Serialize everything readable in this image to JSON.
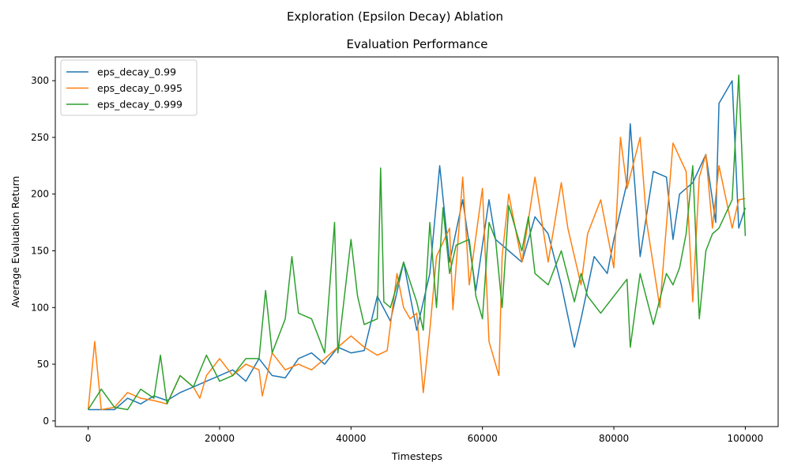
{
  "figure_title": "Exploration (Epsilon Decay) Ablation",
  "chart_data": {
    "type": "line",
    "title": "Evaluation Performance",
    "xlabel": "Timesteps",
    "ylabel": "Average Evaluation Return",
    "xlim": [
      -5000,
      105000
    ],
    "ylim": [
      -5,
      321
    ],
    "xticks": [
      0,
      20000,
      40000,
      60000,
      80000,
      100000
    ],
    "yticks": [
      0,
      50,
      100,
      150,
      200,
      250,
      300
    ],
    "grid": false,
    "legend_position": "top-left",
    "series": [
      {
        "name": "eps_decay_0.99",
        "color": "#1f77b4",
        "x": [
          0,
          2000,
          4000,
          6000,
          8000,
          10000,
          12000,
          14000,
          16000,
          18000,
          20000,
          22000,
          24000,
          26000,
          28000,
          30000,
          32000,
          34000,
          36000,
          38000,
          40000,
          42000,
          44000,
          46000,
          48000,
          50000,
          52000,
          53500,
          55000,
          57000,
          59000,
          61000,
          62000,
          64000,
          66000,
          68000,
          70000,
          72000,
          74000,
          75000,
          77000,
          79000,
          80000,
          82000,
          82500,
          84000,
          86000,
          88000,
          89000,
          90000,
          92000,
          94000,
          95500,
          96000,
          98000,
          99000,
          100000
        ],
        "y": [
          10,
          10,
          10,
          20,
          15,
          22,
          18,
          25,
          30,
          35,
          40,
          45,
          35,
          55,
          40,
          38,
          55,
          60,
          50,
          65,
          60,
          62,
          110,
          88,
          140,
          80,
          130,
          225,
          140,
          195,
          115,
          195,
          160,
          150,
          140,
          180,
          165,
          120,
          65,
          90,
          145,
          130,
          160,
          210,
          262,
          145,
          220,
          215,
          160,
          200,
          210,
          235,
          175,
          280,
          300,
          170,
          188
        ]
      },
      {
        "name": "eps_decay_0.995",
        "color": "#ff7f0e",
        "x": [
          0,
          1000,
          2000,
          4000,
          6000,
          8000,
          10000,
          12000,
          14000,
          16000,
          17000,
          18000,
          20000,
          22000,
          24000,
          26000,
          26500,
          28000,
          30000,
          32000,
          34000,
          36000,
          38000,
          40000,
          42000,
          44000,
          45500,
          47000,
          48000,
          49000,
          50000,
          51000,
          52000,
          53000,
          55000,
          55500,
          57000,
          58000,
          60000,
          61000,
          62500,
          63000,
          64000,
          66000,
          68000,
          70000,
          72000,
          73000,
          75000,
          76000,
          78000,
          80000,
          81000,
          82000,
          84000,
          85000,
          87000,
          89000,
          91000,
          92000,
          93000,
          94000,
          95000,
          96000,
          98000,
          99000,
          100000
        ],
        "y": [
          10,
          70,
          10,
          12,
          25,
          20,
          18,
          15,
          40,
          30,
          20,
          40,
          55,
          40,
          50,
          45,
          22,
          60,
          45,
          50,
          45,
          55,
          65,
          75,
          65,
          58,
          62,
          130,
          100,
          90,
          95,
          25,
          80,
          145,
          170,
          98,
          215,
          120,
          205,
          70,
          40,
          145,
          200,
          140,
          215,
          140,
          210,
          170,
          120,
          165,
          195,
          135,
          250,
          205,
          250,
          175,
          100,
          245,
          220,
          105,
          215,
          235,
          170,
          225,
          170,
          195,
          196
        ]
      },
      {
        "name": "eps_decay_0.999",
        "color": "#2ca02c",
        "x": [
          0,
          2000,
          4000,
          6000,
          8000,
          10000,
          11000,
          12000,
          14000,
          16000,
          18000,
          20000,
          22000,
          24000,
          26000,
          27000,
          28000,
          30000,
          31000,
          32000,
          34000,
          36000,
          37500,
          38000,
          40000,
          41000,
          42000,
          44000,
          44500,
          45000,
          46000,
          48000,
          50000,
          51000,
          52000,
          53000,
          54000,
          55000,
          56000,
          58000,
          59000,
          60000,
          61000,
          62000,
          63000,
          64000,
          66000,
          67000,
          68000,
          70000,
          72000,
          74000,
          75000,
          76000,
          78000,
          80000,
          82000,
          82500,
          84000,
          86000,
          88000,
          89000,
          90000,
          91000,
          92000,
          93000,
          94000,
          95000,
          96000,
          98000,
          99000,
          100000
        ],
        "y": [
          10,
          28,
          12,
          10,
          28,
          20,
          58,
          15,
          40,
          30,
          58,
          35,
          40,
          55,
          55,
          115,
          60,
          90,
          145,
          95,
          90,
          60,
          175,
          60,
          160,
          110,
          85,
          90,
          223,
          105,
          100,
          140,
          105,
          80,
          175,
          100,
          188,
          130,
          155,
          160,
          110,
          90,
          175,
          160,
          100,
          190,
          150,
          180,
          130,
          120,
          150,
          105,
          130,
          110,
          95,
          110,
          125,
          65,
          130,
          85,
          130,
          120,
          135,
          165,
          225,
          90,
          150,
          165,
          170,
          195,
          305,
          163
        ]
      }
    ]
  }
}
